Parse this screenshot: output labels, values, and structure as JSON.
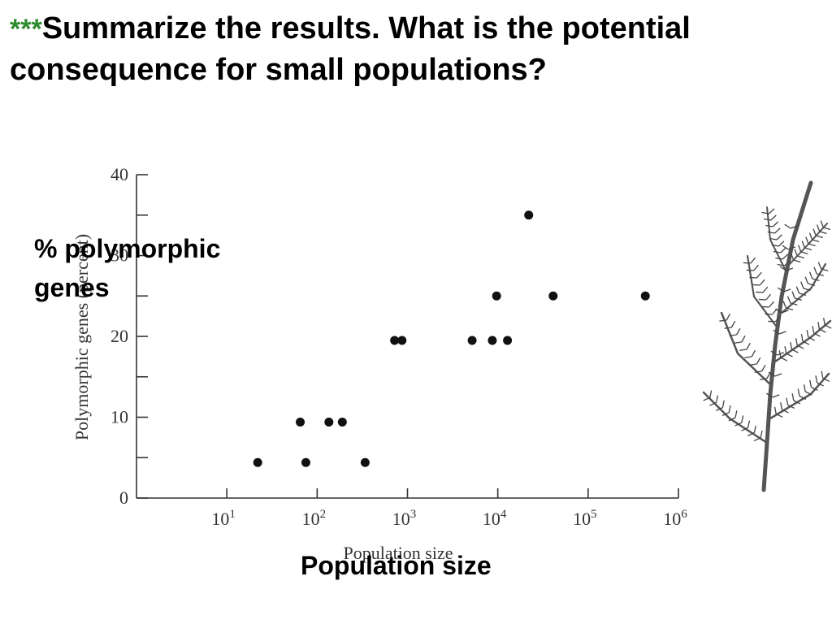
{
  "slide": {
    "title_stars": "***",
    "title_text": "Summarize the results.  What is the potential consequence for small populations?",
    "ylabel_overlay": "% polymorphic genes",
    "xlabel_overlay": "Population size"
  },
  "colors": {
    "stars": "#2e8b2e",
    "text": "#000000",
    "axis": "#333333",
    "points": "#111111"
  },
  "plant_icon": "conifer-branch-illustration",
  "chart_data": {
    "type": "scatter",
    "title": "",
    "xlabel": "Population size",
    "ylabel": "Polymorphic genes (percent)",
    "xscale": "log",
    "xlim": [
      1,
      1000000
    ],
    "ylim": [
      0,
      40
    ],
    "x_ticks": [
      {
        "value": 10,
        "base": "10",
        "exp": "1"
      },
      {
        "value": 100,
        "base": "10",
        "exp": "2"
      },
      {
        "value": 1000,
        "base": "10",
        "exp": "3"
      },
      {
        "value": 10000,
        "base": "10",
        "exp": "4"
      },
      {
        "value": 100000,
        "base": "10",
        "exp": "5"
      },
      {
        "value": 1000000,
        "base": "10",
        "exp": "6"
      }
    ],
    "y_ticks": [
      {
        "value": 0,
        "label": "0"
      },
      {
        "value": 5,
        "label": ""
      },
      {
        "value": 10,
        "label": "10"
      },
      {
        "value": 15,
        "label": ""
      },
      {
        "value": 20,
        "label": "20"
      },
      {
        "value": 25,
        "label": ""
      },
      {
        "value": 30,
        "label": "30"
      },
      {
        "value": 35,
        "label": ""
      },
      {
        "value": 40,
        "label": "40"
      }
    ],
    "points": [
      {
        "x": 22,
        "y": 4.4
      },
      {
        "x": 65,
        "y": 9.4
      },
      {
        "x": 75,
        "y": 4.4
      },
      {
        "x": 135,
        "y": 9.4
      },
      {
        "x": 190,
        "y": 9.4
      },
      {
        "x": 340,
        "y": 4.4
      },
      {
        "x": 720,
        "y": 19.5
      },
      {
        "x": 870,
        "y": 19.5
      },
      {
        "x": 5200,
        "y": 19.5
      },
      {
        "x": 8700,
        "y": 19.5
      },
      {
        "x": 9700,
        "y": 25.0
      },
      {
        "x": 12800,
        "y": 19.5
      },
      {
        "x": 22000,
        "y": 35.0
      },
      {
        "x": 41000,
        "y": 25.0
      },
      {
        "x": 430000,
        "y": 25.0
      }
    ],
    "grid": false,
    "legend": "none"
  }
}
